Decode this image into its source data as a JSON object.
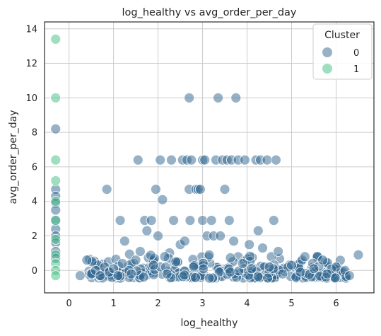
{
  "chart_data": {
    "type": "scatter",
    "title": "log_healthy vs avg_order_per_day",
    "xlabel": "log_healthy",
    "ylabel": "avg_order_per_day",
    "xlim": [
      -0.55,
      6.85
    ],
    "ylim": [
      -1.3,
      14.4
    ],
    "xticks": [
      "0",
      "1",
      "2",
      "3",
      "4",
      "5",
      "6"
    ],
    "yticks": [
      "0",
      "2",
      "4",
      "6",
      "8",
      "10",
      "12",
      "14"
    ],
    "grid": true,
    "legend": {
      "title": "Cluster",
      "placement": "top-right"
    },
    "colors": {
      "cluster_0": "#2f6690",
      "cluster_1": "#3fbf7f",
      "grid": "#cccccc",
      "spine": "#333333"
    },
    "series": [
      {
        "name": "0",
        "points": [
          [
            -0.3,
            8.2
          ],
          [
            -0.3,
            4.7
          ],
          [
            -0.3,
            4.3
          ],
          [
            -0.3,
            3.9
          ],
          [
            -0.3,
            3.5
          ],
          [
            -0.3,
            2.9
          ],
          [
            -0.3,
            2.4
          ],
          [
            -0.3,
            2.0
          ],
          [
            -0.3,
            1.6
          ],
          [
            -0.3,
            1.1
          ],
          [
            -0.3,
            0.7
          ],
          [
            0.25,
            -0.3
          ],
          [
            0.4,
            0.6
          ],
          [
            0.5,
            -0.2
          ],
          [
            0.6,
            0.0
          ],
          [
            0.7,
            -0.3
          ],
          [
            0.8,
            0.2
          ],
          [
            0.85,
            4.7
          ],
          [
            0.9,
            -0.1
          ],
          [
            1.0,
            0.1
          ],
          [
            1.1,
            -0.3
          ],
          [
            1.15,
            2.9
          ],
          [
            1.2,
            0.4
          ],
          [
            1.25,
            1.7
          ],
          [
            1.35,
            0.0
          ],
          [
            1.4,
            -0.2
          ],
          [
            1.5,
            0.6
          ],
          [
            1.55,
            6.4
          ],
          [
            1.6,
            1.1
          ],
          [
            1.7,
            2.9
          ],
          [
            1.75,
            2.3
          ],
          [
            1.85,
            2.9
          ],
          [
            1.9,
            0.3
          ],
          [
            1.95,
            4.7
          ],
          [
            2.0,
            2.0
          ],
          [
            2.05,
            6.4
          ],
          [
            2.1,
            4.1
          ],
          [
            2.15,
            0.8
          ],
          [
            2.2,
            -0.2
          ],
          [
            2.3,
            6.4
          ],
          [
            2.35,
            2.9
          ],
          [
            2.4,
            0.5
          ],
          [
            2.5,
            1.5
          ],
          [
            2.55,
            6.4
          ],
          [
            2.6,
            1.7
          ],
          [
            2.65,
            6.4
          ],
          [
            2.7,
            10.0
          ],
          [
            2.7,
            4.7
          ],
          [
            2.72,
            2.9
          ],
          [
            2.75,
            6.4
          ],
          [
            2.8,
            0.2
          ],
          [
            2.85,
            4.7
          ],
          [
            2.9,
            4.7
          ],
          [
            2.95,
            4.7
          ],
          [
            3.0,
            6.4
          ],
          [
            3.0,
            2.9
          ],
          [
            3.05,
            6.4
          ],
          [
            3.1,
            2.0
          ],
          [
            3.15,
            0.9
          ],
          [
            3.2,
            2.9
          ],
          [
            3.25,
            2.0
          ],
          [
            3.3,
            6.4
          ],
          [
            3.35,
            10.0
          ],
          [
            3.4,
            2.0
          ],
          [
            3.45,
            6.4
          ],
          [
            3.5,
            4.7
          ],
          [
            3.55,
            6.4
          ],
          [
            3.6,
            2.9
          ],
          [
            3.65,
            6.4
          ],
          [
            3.7,
            1.7
          ],
          [
            3.75,
            10.0
          ],
          [
            3.8,
            6.4
          ],
          [
            3.9,
            0.4
          ],
          [
            3.95,
            6.4
          ],
          [
            4.05,
            1.5
          ],
          [
            4.1,
            0.1
          ],
          [
            4.2,
            6.4
          ],
          [
            4.25,
            2.3
          ],
          [
            4.3,
            6.4
          ],
          [
            4.35,
            1.3
          ],
          [
            4.45,
            6.4
          ],
          [
            4.5,
            0.2
          ],
          [
            4.6,
            2.9
          ],
          [
            4.65,
            6.4
          ],
          [
            4.7,
            1.1
          ],
          [
            4.8,
            -0.2
          ],
          [
            5.0,
            0.3
          ],
          [
            5.2,
            -0.1
          ],
          [
            5.3,
            0.8
          ],
          [
            5.5,
            0.1
          ],
          [
            5.7,
            0.6
          ],
          [
            5.8,
            -0.2
          ],
          [
            6.0,
            0.2
          ],
          [
            6.2,
            0.0
          ],
          [
            6.3,
            -0.3
          ],
          [
            6.5,
            0.9
          ]
        ]
      },
      {
        "name": "1",
        "points": [
          [
            -0.3,
            13.4
          ],
          [
            -0.3,
            10.0
          ],
          [
            -0.3,
            6.4
          ],
          [
            -0.3,
            5.2
          ],
          [
            -0.3,
            4.0
          ],
          [
            -0.3,
            2.9
          ],
          [
            -0.3,
            1.8
          ],
          [
            -0.3,
            0.9
          ],
          [
            -0.3,
            0.4
          ],
          [
            -0.3,
            0.0
          ],
          [
            -0.3,
            -0.3
          ]
        ]
      }
    ]
  }
}
